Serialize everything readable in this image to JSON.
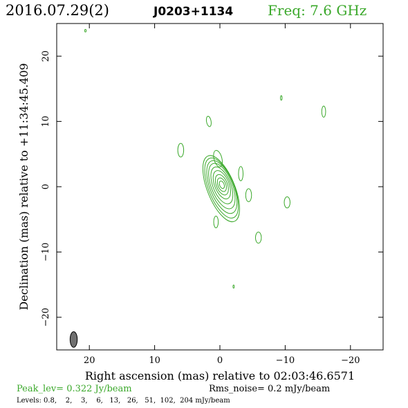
{
  "header": {
    "date": "2016.07.29(2)",
    "source": "J0203+1134",
    "freq": "Freq: 7.6 GHz"
  },
  "axes": {
    "xlabel": "Right ascension (mas) relative to 02:03:46.6571",
    "ylabel": "Declination (mas) relative to +11:34:45.409"
  },
  "footer": {
    "peak": "Peak_lev=  0.322 Jy/beam",
    "rms": "Rms_noise=   0.2 mJy/beam",
    "levels": "Levels: 0.8,    2,    3,    6,   13,   26,   51,  102,  204 mJy/beam"
  },
  "colors": {
    "contour": "#3aa82a",
    "beam_fill": "#707070",
    "text": "#000000",
    "freq_text": "#3aa82a"
  },
  "chart_data": {
    "type": "contour",
    "xlim": [
      25,
      -25
    ],
    "ylim": [
      -25,
      25
    ],
    "x_ticks": [
      20,
      10,
      0,
      -10,
      -20
    ],
    "x_tick_labels": [
      "20",
      "10",
      "0",
      "−10",
      "−20"
    ],
    "y_ticks": [
      20,
      10,
      0,
      -10,
      -20
    ],
    "y_tick_labels": [
      "20",
      "10",
      "0",
      "−10",
      "−20"
    ],
    "levels_mJy": [
      0.8,
      2,
      3,
      6,
      13,
      26,
      51,
      102,
      204
    ],
    "peak_Jy_per_beam": 0.322,
    "rms_mJy_per_beam": 0.2,
    "core": {
      "x": -0.3,
      "y": 0.3,
      "contours": [
        {
          "rx": 2.1,
          "ry": 5.4,
          "angle": -22,
          "dx": 0.1,
          "dy": -0.6
        },
        {
          "rx": 1.95,
          "ry": 4.9,
          "angle": -22,
          "dx": 0.05,
          "dy": -0.5
        },
        {
          "rx": 1.8,
          "ry": 4.3,
          "angle": -22,
          "dx": 0.0,
          "dy": -0.35
        },
        {
          "rx": 1.6,
          "ry": 3.7,
          "angle": -22,
          "dx": 0.0,
          "dy": -0.2
        },
        {
          "rx": 1.35,
          "ry": 3.0,
          "angle": -22,
          "dx": 0.0,
          "dy": -0.1
        },
        {
          "rx": 1.1,
          "ry": 2.3,
          "angle": -22,
          "dx": 0.0,
          "dy": 0.0
        },
        {
          "rx": 0.85,
          "ry": 1.65,
          "angle": -22,
          "dx": 0.0,
          "dy": 0.0
        },
        {
          "rx": 0.6,
          "ry": 1.1,
          "angle": -22,
          "dx": 0.0,
          "dy": 0.0
        },
        {
          "rx": 0.35,
          "ry": 0.6,
          "angle": -22,
          "dx": 0.0,
          "dy": 0.0
        }
      ]
    },
    "components": [
      {
        "x": 0.3,
        "y": 4.3,
        "rx": 0.6,
        "ry": 1.3,
        "angle": -15
      },
      {
        "x": -3.2,
        "y": 2.0,
        "rx": 0.35,
        "ry": 1.1,
        "angle": 0
      },
      {
        "x": -4.4,
        "y": -1.3,
        "rx": 0.45,
        "ry": 1.0,
        "angle": 0
      },
      {
        "x": 0.6,
        "y": -5.4,
        "rx": 0.35,
        "ry": 0.9,
        "angle": 0
      },
      {
        "x": 6.0,
        "y": 5.6,
        "rx": 0.45,
        "ry": 1.05,
        "angle": 0
      },
      {
        "x": 1.7,
        "y": 10.0,
        "rx": 0.35,
        "ry": 0.8,
        "angle": -10
      },
      {
        "x": -9.4,
        "y": 13.6,
        "rx": 0.12,
        "ry": 0.35,
        "angle": 0
      },
      {
        "x": -15.9,
        "y": 11.5,
        "rx": 0.3,
        "ry": 0.85,
        "angle": 0
      },
      {
        "x": -10.3,
        "y": -2.4,
        "rx": 0.45,
        "ry": 0.85,
        "angle": 0
      },
      {
        "x": -5.9,
        "y": -7.8,
        "rx": 0.45,
        "ry": 0.85,
        "angle": 0
      },
      {
        "x": -2.1,
        "y": -15.3,
        "rx": 0.1,
        "ry": 0.25,
        "angle": 0
      },
      {
        "x": 20.6,
        "y": 23.9,
        "rx": 0.12,
        "ry": 0.2,
        "angle": 0
      }
    ],
    "beam": {
      "x": 22.4,
      "y": -23.4,
      "rx": 0.55,
      "ry": 1.2,
      "angle": 0
    }
  }
}
